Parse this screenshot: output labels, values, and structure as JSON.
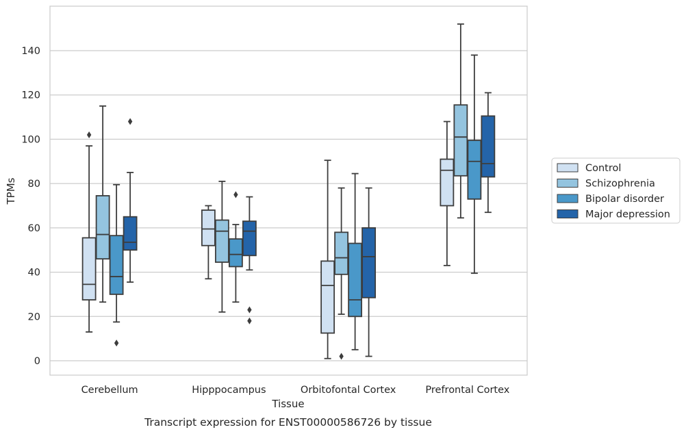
{
  "chart_data": {
    "type": "boxplot",
    "title": "Transcript expression for ENST00000586726 by tissue",
    "xlabel": "Tissue",
    "ylabel": "TPMs",
    "ylim": [
      -6,
      160
    ],
    "yticks": [
      0,
      20,
      40,
      60,
      80,
      100,
      120,
      140
    ],
    "grid": "horizontal",
    "legend_position": "right",
    "categories": [
      "Cerebellum",
      "Hipppocampus",
      "Orbitofontal Cortex",
      "Prefrontal Cortex"
    ],
    "series": [
      {
        "name": "Control",
        "color": "#d0e1f2",
        "boxes": [
          {
            "whislo": 13,
            "q1": 27.5,
            "med": 34.5,
            "q3": 55.5,
            "whishi": 97,
            "fliers": [
              102
            ]
          },
          {
            "whislo": 37,
            "q1": 52,
            "med": 59.5,
            "q3": 68,
            "whishi": 70,
            "fliers": []
          },
          {
            "whislo": 1,
            "q1": 12.5,
            "med": 34,
            "q3": 45,
            "whishi": 90.5,
            "fliers": []
          },
          {
            "whislo": 43,
            "q1": 70,
            "med": 86,
            "q3": 91,
            "whishi": 108,
            "fliers": []
          }
        ]
      },
      {
        "name": "Schizophrenia",
        "color": "#94c4df",
        "boxes": [
          {
            "whislo": 26.5,
            "q1": 46,
            "med": 57,
            "q3": 74.5,
            "whishi": 115,
            "fliers": []
          },
          {
            "whislo": 22,
            "q1": 44.5,
            "med": 58.5,
            "q3": 63.5,
            "whishi": 81,
            "fliers": []
          },
          {
            "whislo": 21,
            "q1": 39,
            "med": 46.5,
            "q3": 58,
            "whishi": 78,
            "fliers": [
              2
            ]
          },
          {
            "whislo": 64.5,
            "q1": 83.5,
            "med": 101,
            "q3": 115.5,
            "whishi": 152,
            "fliers": []
          }
        ]
      },
      {
        "name": "Bipolar disorder",
        "color": "#4a98c9",
        "boxes": [
          {
            "whislo": 17.5,
            "q1": 30,
            "med": 38,
            "q3": 56.5,
            "whishi": 79.5,
            "fliers": [
              8
            ]
          },
          {
            "whislo": 26.5,
            "q1": 42.5,
            "med": 48,
            "q3": 55,
            "whishi": 61.5,
            "fliers": [
              75
            ]
          },
          {
            "whislo": 5,
            "q1": 20,
            "med": 27.5,
            "q3": 53,
            "whishi": 84.5,
            "fliers": []
          },
          {
            "whislo": 39.5,
            "q1": 73,
            "med": 90,
            "q3": 99.5,
            "whishi": 138,
            "fliers": []
          }
        ]
      },
      {
        "name": "Major depression",
        "color": "#2464a9",
        "boxes": [
          {
            "whislo": 35.5,
            "q1": 50,
            "med": 53.5,
            "q3": 65,
            "whishi": 85,
            "fliers": [
              108
            ]
          },
          {
            "whislo": 41,
            "q1": 47.5,
            "med": 58.5,
            "q3": 63,
            "whishi": 74,
            "fliers": [
              23,
              18
            ]
          },
          {
            "whislo": 2,
            "q1": 28.5,
            "med": 47,
            "q3": 60,
            "whishi": 78,
            "fliers": []
          },
          {
            "whislo": 67,
            "q1": 83,
            "med": 89,
            "q3": 110.5,
            "whishi": 121,
            "fliers": []
          }
        ]
      }
    ]
  }
}
